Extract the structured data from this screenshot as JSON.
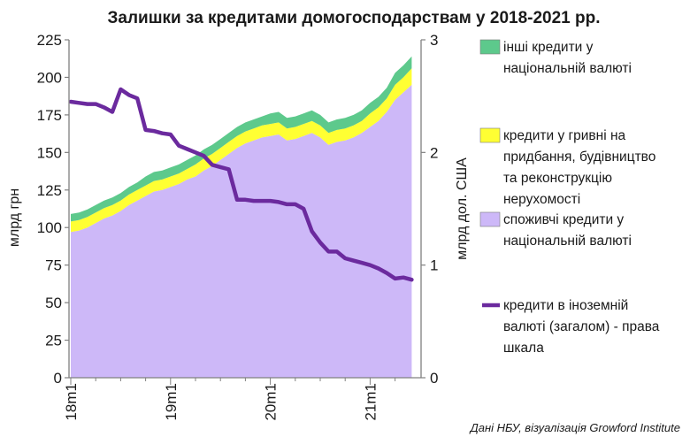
{
  "chart_data": {
    "type": "area",
    "title": "Залишки за кредитами домогосподарствам у 2018-2021 рр.",
    "source": "Дані НБУ, візуалізація Growford Institute",
    "ylabel_left": "млрд грн",
    "ylabel_right": "млрд дол. США",
    "ylim_left": [
      0,
      225
    ],
    "ylim_right": [
      0,
      3
    ],
    "yticks_left": [
      "0",
      "25",
      "50",
      "75",
      "100",
      "125",
      "150",
      "175",
      "200",
      "225"
    ],
    "yticks_right": [
      "0",
      "1",
      "2",
      "3"
    ],
    "xticks": [
      {
        "index": 0,
        "label": "18m1"
      },
      {
        "index": 12,
        "label": "19m1"
      },
      {
        "index": 24,
        "label": "20m1"
      },
      {
        "index": 36,
        "label": "21m1"
      }
    ],
    "grid": false,
    "legend_position": "right",
    "series": [
      {
        "name": "споживчі кредити у національній валюті",
        "kind": "stacked-area",
        "color": "#cdb8f8",
        "values": [
          97,
          98,
          100,
          103,
          106,
          108,
          111,
          115,
          118,
          121,
          124,
          125,
          127,
          129,
          132,
          134,
          138,
          141,
          145,
          149,
          153,
          156,
          158,
          160,
          161,
          162,
          158,
          159,
          161,
          163,
          160,
          155,
          157,
          158,
          160,
          163,
          167,
          171,
          177,
          185,
          190,
          195
        ]
      },
      {
        "name": "кредити у гривні на придбання, будівництво та реконструкцію нерухомості",
        "kind": "stacked-area",
        "color": "#ffff33",
        "values": [
          7,
          7,
          7,
          7,
          7,
          7,
          7,
          7,
          7,
          7,
          7,
          7,
          7,
          7,
          7,
          8,
          8,
          8,
          8,
          8,
          8,
          8,
          8,
          8,
          8,
          8,
          8,
          8,
          8,
          8,
          8,
          8,
          8,
          8,
          8,
          8,
          9,
          9,
          9,
          10,
          10,
          11
        ]
      },
      {
        "name": "інші кредити у національній валюті",
        "kind": "stacked-area",
        "color": "#5dc98c",
        "values": [
          5,
          5,
          5,
          5,
          5,
          5,
          5,
          5,
          5,
          6,
          6,
          6,
          6,
          6,
          6,
          6,
          6,
          6,
          6,
          6,
          6,
          6,
          6,
          6,
          7,
          7,
          7,
          7,
          7,
          7,
          7,
          7,
          7,
          7,
          7,
          7,
          7,
          7,
          7,
          8,
          8,
          8
        ]
      },
      {
        "name": "кредити в іноземній валюті (загалом) - права шкала",
        "kind": "line",
        "axis": "right",
        "color": "#6b2a9e",
        "values": [
          2.45,
          2.44,
          2.43,
          2.43,
          2.4,
          2.36,
          2.56,
          2.51,
          2.48,
          2.2,
          2.19,
          2.17,
          2.16,
          2.06,
          2.03,
          2.0,
          1.97,
          1.89,
          1.87,
          1.85,
          1.58,
          1.58,
          1.57,
          1.57,
          1.57,
          1.56,
          1.54,
          1.54,
          1.5,
          1.3,
          1.2,
          1.12,
          1.12,
          1.06,
          1.04,
          1.02,
          1.0,
          0.97,
          0.93,
          0.88,
          0.89,
          0.87
        ]
      }
    ]
  }
}
